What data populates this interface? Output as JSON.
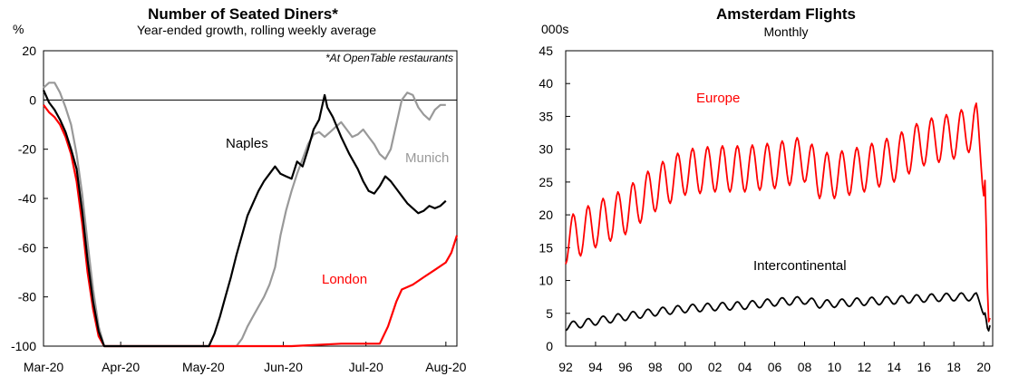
{
  "chart_data": [
    {
      "type": "line",
      "title": "Number of Seated Diners*",
      "subtitle": "Year-ended growth, rolling weekly average",
      "ylabel": "%",
      "note": "*At OpenTable  restaurants",
      "ylim": [
        -100,
        20
      ],
      "yticks": [
        "20",
        "0",
        "-20",
        "-40",
        "-60",
        "-80",
        "-100"
      ],
      "xticks": [
        "Mar-20",
        "Apr-20",
        "May-20",
        "Jun-20",
        "Jul-20",
        "Aug-20"
      ],
      "zero_line": true,
      "series": [
        {
          "name": "Naples",
          "color": "#000000",
          "points": [
            [
              0,
              4
            ],
            [
              2,
              -1
            ],
            [
              4,
              -4
            ],
            [
              6,
              -8
            ],
            [
              8,
              -13
            ],
            [
              10,
              -20
            ],
            [
              12,
              -28
            ],
            [
              14,
              -45
            ],
            [
              16,
              -65
            ],
            [
              18,
              -82
            ],
            [
              20,
              -94
            ],
            [
              22,
              -100
            ],
            [
              60,
              -100
            ],
            [
              62,
              -95
            ],
            [
              64,
              -88
            ],
            [
              66,
              -80
            ],
            [
              68,
              -72
            ],
            [
              70,
              -63
            ],
            [
              72,
              -55
            ],
            [
              74,
              -47
            ],
            [
              76,
              -42
            ],
            [
              78,
              -37
            ],
            [
              80,
              -33
            ],
            [
              82,
              -30
            ],
            [
              84,
              -27
            ],
            [
              86,
              -30
            ],
            [
              88,
              -31
            ],
            [
              90,
              -32
            ],
            [
              92,
              -25
            ],
            [
              94,
              -27
            ],
            [
              96,
              -20
            ],
            [
              98,
              -12
            ],
            [
              100,
              -8
            ],
            [
              102,
              2
            ],
            [
              103,
              -3
            ],
            [
              105,
              -7
            ],
            [
              108,
              -15
            ],
            [
              111,
              -22
            ],
            [
              114,
              -28
            ],
            [
              116,
              -33
            ],
            [
              118,
              -37
            ],
            [
              120,
              -38
            ],
            [
              122,
              -35
            ],
            [
              124,
              -31
            ],
            [
              126,
              -33
            ],
            [
              128,
              -36
            ],
            [
              130,
              -39
            ],
            [
              132,
              -42
            ],
            [
              134,
              -44
            ],
            [
              136,
              -46
            ],
            [
              138,
              -45
            ],
            [
              140,
              -43
            ],
            [
              142,
              -44
            ],
            [
              144,
              -43
            ],
            [
              146,
              -41
            ]
          ]
        },
        {
          "name": "Munich",
          "color": "#999999",
          "points": [
            [
              0,
              5
            ],
            [
              2,
              7
            ],
            [
              4,
              7
            ],
            [
              6,
              3
            ],
            [
              8,
              -3
            ],
            [
              10,
              -10
            ],
            [
              12,
              -22
            ],
            [
              14,
              -38
            ],
            [
              16,
              -58
            ],
            [
              18,
              -77
            ],
            [
              20,
              -92
            ],
            [
              22,
              -100
            ],
            [
              70,
              -100
            ],
            [
              72,
              -97
            ],
            [
              74,
              -92
            ],
            [
              76,
              -88
            ],
            [
              78,
              -84
            ],
            [
              80,
              -80
            ],
            [
              82,
              -75
            ],
            [
              84,
              -68
            ],
            [
              86,
              -55
            ],
            [
              88,
              -45
            ],
            [
              90,
              -37
            ],
            [
              92,
              -30
            ],
            [
              94,
              -24
            ],
            [
              96,
              -18
            ],
            [
              98,
              -14
            ],
            [
              100,
              -13
            ],
            [
              102,
              -15
            ],
            [
              104,
              -13
            ],
            [
              106,
              -11
            ],
            [
              108,
              -9
            ],
            [
              110,
              -12
            ],
            [
              112,
              -15
            ],
            [
              114,
              -14
            ],
            [
              116,
              -12
            ],
            [
              118,
              -15
            ],
            [
              120,
              -18
            ],
            [
              122,
              -22
            ],
            [
              124,
              -24
            ],
            [
              126,
              -20
            ],
            [
              128,
              -10
            ],
            [
              130,
              0
            ],
            [
              132,
              3
            ],
            [
              134,
              2
            ],
            [
              136,
              -3
            ],
            [
              138,
              -6
            ],
            [
              140,
              -8
            ],
            [
              142,
              -4
            ],
            [
              144,
              -2
            ],
            [
              146,
              -2
            ]
          ]
        },
        {
          "name": "London",
          "color": "#ff0000",
          "points": [
            [
              0,
              -2
            ],
            [
              2,
              -5
            ],
            [
              4,
              -7
            ],
            [
              6,
              -10
            ],
            [
              8,
              -15
            ],
            [
              10,
              -22
            ],
            [
              12,
              -33
            ],
            [
              14,
              -50
            ],
            [
              16,
              -70
            ],
            [
              18,
              -85
            ],
            [
              20,
              -96
            ],
            [
              22,
              -100
            ],
            [
              90,
              -100
            ],
            [
              108,
              -99
            ],
            [
              122,
              -99
            ],
            [
              125,
              -92
            ],
            [
              128,
              -82
            ],
            [
              130,
              -77
            ],
            [
              134,
              -75
            ],
            [
              138,
              -72
            ],
            [
              142,
              -69
            ],
            [
              146,
              -66
            ],
            [
              148,
              -62
            ],
            [
              150,
              -55
            ]
          ]
        }
      ]
    },
    {
      "type": "line",
      "title": "Amsterdam  Flights",
      "subtitle": "Monthly",
      "ylabel": "000s",
      "ylim": [
        0,
        45
      ],
      "yticks": [
        "45",
        "40",
        "35",
        "30",
        "25",
        "20",
        "15",
        "10",
        "5",
        "0"
      ],
      "xticks": [
        "92",
        "94",
        "96",
        "98",
        "00",
        "02",
        "04",
        "06",
        "08",
        "10",
        "12",
        "14",
        "16",
        "18",
        "20"
      ],
      "series": [
        {
          "name": "Europe",
          "color": "#ff0000",
          "trend": [
            [
              1992,
              16
            ],
            [
              1994,
              18.5
            ],
            [
              1996,
              20.5
            ],
            [
              1998,
              24
            ],
            [
              2000,
              26.5
            ],
            [
              2002,
              27
            ],
            [
              2004,
              27
            ],
            [
              2006,
              27.5
            ],
            [
              2008,
              28.5
            ],
            [
              2009,
              26
            ],
            [
              2010,
              26
            ],
            [
              2012,
              27
            ],
            [
              2014,
              28.5
            ],
            [
              2016,
              31
            ],
            [
              2018,
              32
            ],
            [
              2019.5,
              33.5
            ],
            [
              2020.1,
              25
            ],
            [
              2020.3,
              3.5
            ],
            [
              2020.45,
              4.5
            ]
          ],
          "seasonal_amplitude": 3.5
        },
        {
          "name": "Intercontinental",
          "color": "#000000",
          "trend": [
            [
              1992,
              3
            ],
            [
              1994,
              3.8
            ],
            [
              1996,
              4.5
            ],
            [
              1998,
              5.2
            ],
            [
              2000,
              5.7
            ],
            [
              2002,
              6
            ],
            [
              2004,
              6.2
            ],
            [
              2006,
              6.7
            ],
            [
              2008,
              7
            ],
            [
              2009,
              6.4
            ],
            [
              2010,
              6.5
            ],
            [
              2012,
              6.8
            ],
            [
              2014,
              7
            ],
            [
              2016,
              7.3
            ],
            [
              2018,
              7.5
            ],
            [
              2019.5,
              7.5
            ],
            [
              2020.1,
              5
            ],
            [
              2020.3,
              2
            ],
            [
              2020.45,
              3.5
            ]
          ],
          "seasonal_amplitude": 0.6
        }
      ]
    }
  ]
}
